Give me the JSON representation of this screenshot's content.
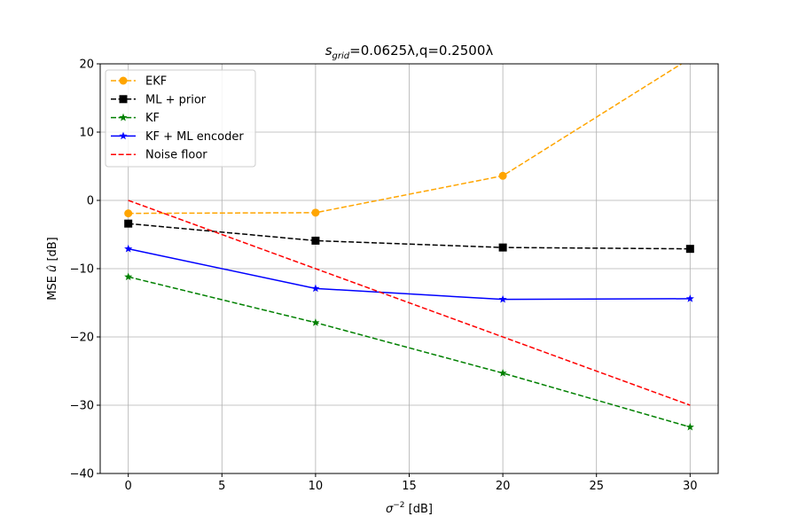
{
  "chart_data": {
    "type": "line",
    "title": {
      "base": "s",
      "sub": "grid",
      "rest": "=0.0625λ,q=0.2500λ"
    },
    "xlabel": {
      "prefix": "σ",
      "sup": "−2",
      "suffix": " [dB]"
    },
    "ylabel": {
      "prefix": "MSE ",
      "hat_var": "û",
      "suffix": " [dB]"
    },
    "xlim": [
      -1.5,
      31.5
    ],
    "ylim": [
      -40,
      20
    ],
    "xticks": [
      0,
      5,
      10,
      15,
      20,
      25,
      30
    ],
    "yticks": [
      -40,
      -30,
      -20,
      -10,
      0,
      10,
      20
    ],
    "grid": true,
    "legend_position": "top-left",
    "series": [
      {
        "name": "EKF",
        "x": [
          0,
          10,
          20,
          30
        ],
        "y": [
          -1.9,
          -1.8,
          3.6,
          20.8
        ],
        "color": "#ffa500",
        "dash": true,
        "marker": "circle"
      },
      {
        "name": "ML + prior",
        "x": [
          0,
          10,
          20,
          30
        ],
        "y": [
          -3.4,
          -5.9,
          -6.9,
          -7.1
        ],
        "color": "#000000",
        "dash": true,
        "marker": "square"
      },
      {
        "name": "KF",
        "x": [
          0,
          10,
          20,
          30
        ],
        "y": [
          -11.2,
          -17.9,
          -25.3,
          -33.2
        ],
        "color": "#008000",
        "dash": true,
        "marker": "star"
      },
      {
        "name": "KF + ML encoder",
        "x": [
          0,
          10,
          20,
          30
        ],
        "y": [
          -7.1,
          -12.9,
          -14.5,
          -14.4
        ],
        "color": "#0000ff",
        "dash": false,
        "marker": "star"
      },
      {
        "name": "Noise floor",
        "x": [
          0,
          30
        ],
        "y": [
          0,
          -30
        ],
        "color": "#ff0000",
        "dash": true,
        "marker": "none"
      }
    ]
  }
}
